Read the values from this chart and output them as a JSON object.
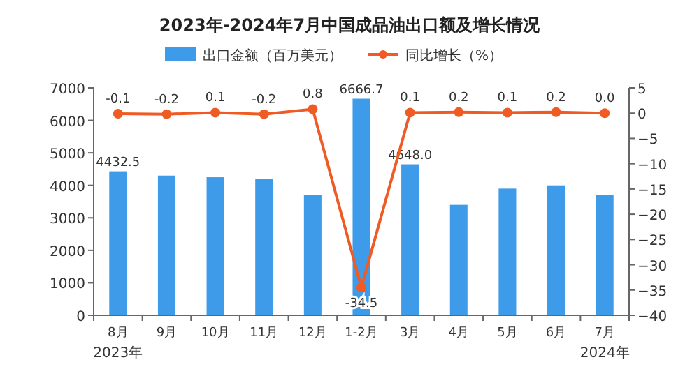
{
  "chart_data": {
    "type": "bar",
    "title": "2023年-2024年7月中国成品油出口额及增长情况",
    "categories": [
      "8月",
      "9月",
      "10月",
      "11月",
      "12月",
      "1-2月",
      "3月",
      "4月",
      "5月",
      "6月",
      "7月"
    ],
    "series": [
      {
        "name": "出口金额（百万美元）",
        "color": "#3d9be9",
        "values": [
          4432.5,
          4300,
          4250,
          4200,
          3700,
          6666.7,
          4648.0,
          3400,
          3900,
          4000,
          3700
        ],
        "value_labels": [
          "4432.5",
          null,
          null,
          null,
          null,
          "6666.7",
          "4648.0",
          null,
          null,
          null,
          null
        ]
      },
      {
        "name": "同比增长（%）",
        "type": "line",
        "axis": "y2",
        "color": "#f05a23",
        "values": [
          -0.1,
          -0.2,
          0.1,
          -0.2,
          0.8,
          -34.5,
          0.1,
          0.2,
          0.1,
          0.2,
          0.0
        ],
        "value_labels": [
          "-0.1",
          "-0.2",
          "0.1",
          "-0.2",
          "0.8",
          "-34.5",
          "0.1",
          "0.2",
          "0.1",
          "0.2",
          "0.0"
        ]
      }
    ],
    "ylim": [
      0,
      7000
    ],
    "yticks": [
      0,
      1000,
      2000,
      3000,
      4000,
      5000,
      6000,
      7000
    ],
    "y2lim": [
      -40,
      5
    ],
    "y2ticks": [
      {
        "value": -40,
        "label": "−40"
      },
      {
        "value": -35,
        "label": "−35"
      },
      {
        "value": -30,
        "label": "−30"
      },
      {
        "value": -25,
        "label": "−25"
      },
      {
        "value": -20,
        "label": "−20"
      },
      {
        "value": -15,
        "label": "−15"
      },
      {
        "value": -10,
        "label": "−10"
      },
      {
        "value": -5,
        "label": "−5"
      },
      0,
      5
    ],
    "marker": "circle",
    "legend": "top",
    "line_style": "solid",
    "annotations": [
      "2023年",
      "2024年"
    ]
  }
}
